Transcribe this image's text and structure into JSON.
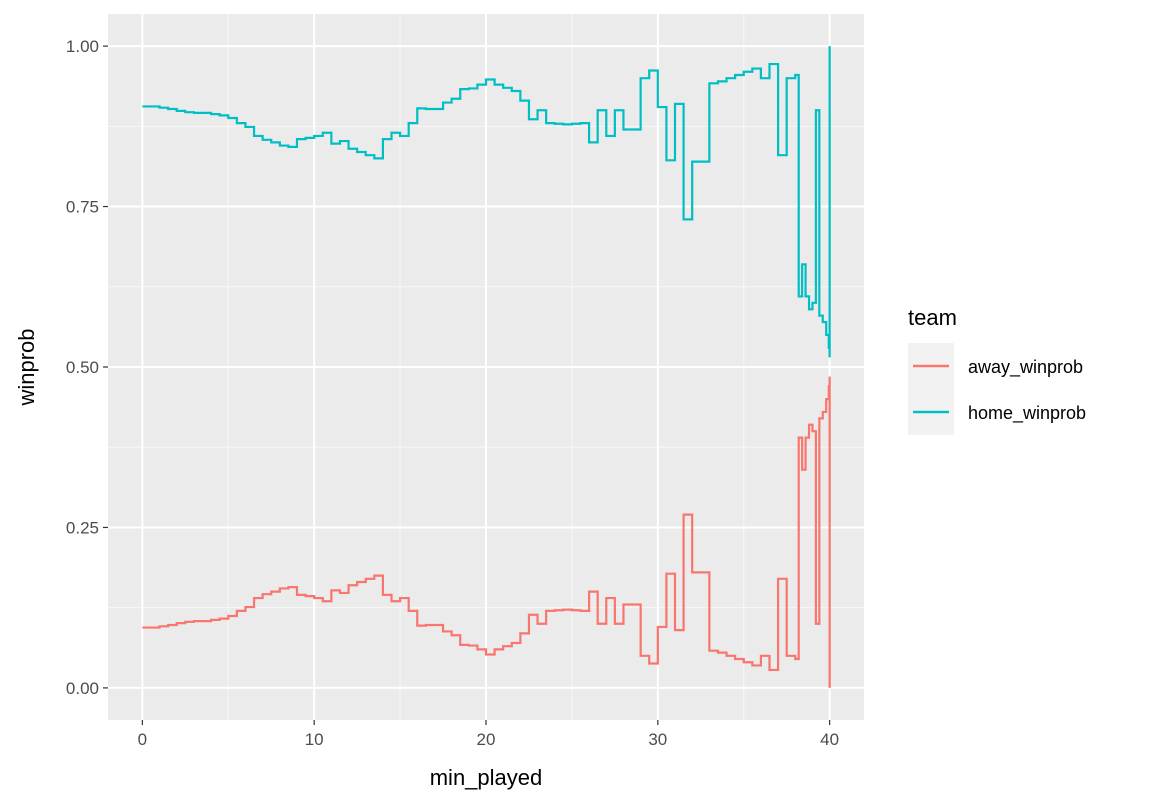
{
  "chart_data": {
    "type": "line",
    "title": "",
    "xlabel": "min_played",
    "ylabel": "winprob",
    "xlim": [
      -2,
      42
    ],
    "ylim": [
      -0.05,
      1.05
    ],
    "x_ticks": [
      0,
      10,
      20,
      30,
      40
    ],
    "x_minor": [
      5,
      15,
      25,
      35
    ],
    "y_ticks": [
      0.0,
      0.25,
      0.5,
      0.75,
      1.0
    ],
    "y_tick_labels": [
      "0.00",
      "0.25",
      "0.50",
      "0.75",
      "1.00"
    ],
    "y_minor": [
      0.125,
      0.375,
      0.625,
      0.875
    ],
    "grid": true,
    "legend": {
      "title": "team",
      "placement": "right"
    },
    "series": [
      {
        "name": "away_winprob",
        "color": "#F8766D",
        "x": [
          0,
          1,
          1.5,
          2,
          2.5,
          3,
          3.5,
          4,
          4.5,
          5,
          5.5,
          6,
          6.5,
          7,
          7.5,
          8,
          8.5,
          9,
          9.5,
          10,
          10.5,
          11,
          11.5,
          12,
          12.5,
          13,
          13.5,
          14,
          14.5,
          15,
          15.5,
          16,
          16.5,
          17,
          17.5,
          18,
          18.5,
          19,
          19.5,
          20,
          20.5,
          21,
          21.5,
          22,
          22.5,
          23,
          23.5,
          24,
          24.5,
          25,
          25.5,
          26,
          26.5,
          27,
          27.5,
          28,
          28.5,
          29,
          29.5,
          30,
          30.5,
          31,
          31.5,
          32,
          32.5,
          33,
          33.5,
          34,
          34.5,
          35,
          35.5,
          36,
          36.5,
          37,
          37.5,
          38,
          38.2,
          38.4,
          38.6,
          38.8,
          39,
          39.2,
          39.4,
          39.6,
          39.8,
          39.95,
          40,
          40
        ],
        "y": [
          0.094,
          0.096,
          0.098,
          0.101,
          0.103,
          0.104,
          0.104,
          0.106,
          0.108,
          0.112,
          0.12,
          0.126,
          0.14,
          0.146,
          0.15,
          0.155,
          0.157,
          0.145,
          0.143,
          0.14,
          0.135,
          0.152,
          0.148,
          0.16,
          0.165,
          0.17,
          0.175,
          0.145,
          0.135,
          0.14,
          0.12,
          0.097,
          0.098,
          0.098,
          0.088,
          0.082,
          0.067,
          0.066,
          0.06,
          0.052,
          0.06,
          0.065,
          0.07,
          0.085,
          0.114,
          0.1,
          0.12,
          0.121,
          0.122,
          0.121,
          0.12,
          0.15,
          0.1,
          0.14,
          0.1,
          0.13,
          0.13,
          0.05,
          0.038,
          0.095,
          0.178,
          0.09,
          0.27,
          0.18,
          0.18,
          0.058,
          0.055,
          0.05,
          0.045,
          0.04,
          0.035,
          0.05,
          0.028,
          0.17,
          0.05,
          0.045,
          0.39,
          0.34,
          0.39,
          0.41,
          0.4,
          0.1,
          0.42,
          0.43,
          0.45,
          0.47,
          0.485,
          0.0
        ]
      },
      {
        "name": "home_winprob",
        "color": "#00BFC4",
        "x": [
          0,
          1,
          1.5,
          2,
          2.5,
          3,
          3.5,
          4,
          4.5,
          5,
          5.5,
          6,
          6.5,
          7,
          7.5,
          8,
          8.5,
          9,
          9.5,
          10,
          10.5,
          11,
          11.5,
          12,
          12.5,
          13,
          13.5,
          14,
          14.5,
          15,
          15.5,
          16,
          16.5,
          17,
          17.5,
          18,
          18.5,
          19,
          19.5,
          20,
          20.5,
          21,
          21.5,
          22,
          22.5,
          23,
          23.5,
          24,
          24.5,
          25,
          25.5,
          26,
          26.5,
          27,
          27.5,
          28,
          28.5,
          29,
          29.5,
          30,
          30.5,
          31,
          31.5,
          32,
          32.5,
          33,
          33.5,
          34,
          34.5,
          35,
          35.5,
          36,
          36.5,
          37,
          37.5,
          38,
          38.2,
          38.4,
          38.6,
          38.8,
          39,
          39.2,
          39.4,
          39.6,
          39.8,
          39.95,
          40,
          40
        ],
        "y": [
          0.906,
          0.904,
          0.902,
          0.899,
          0.897,
          0.896,
          0.896,
          0.894,
          0.892,
          0.888,
          0.88,
          0.874,
          0.86,
          0.854,
          0.85,
          0.845,
          0.843,
          0.855,
          0.857,
          0.86,
          0.865,
          0.848,
          0.852,
          0.84,
          0.835,
          0.83,
          0.825,
          0.855,
          0.865,
          0.86,
          0.88,
          0.903,
          0.902,
          0.902,
          0.912,
          0.918,
          0.933,
          0.934,
          0.94,
          0.948,
          0.94,
          0.935,
          0.93,
          0.915,
          0.886,
          0.9,
          0.88,
          0.879,
          0.878,
          0.879,
          0.88,
          0.85,
          0.9,
          0.86,
          0.9,
          0.87,
          0.87,
          0.95,
          0.962,
          0.905,
          0.822,
          0.91,
          0.73,
          0.82,
          0.82,
          0.942,
          0.945,
          0.95,
          0.955,
          0.96,
          0.965,
          0.95,
          0.972,
          0.83,
          0.95,
          0.955,
          0.61,
          0.66,
          0.61,
          0.59,
          0.6,
          0.9,
          0.58,
          0.57,
          0.55,
          0.53,
          0.515,
          1.0
        ]
      }
    ]
  }
}
